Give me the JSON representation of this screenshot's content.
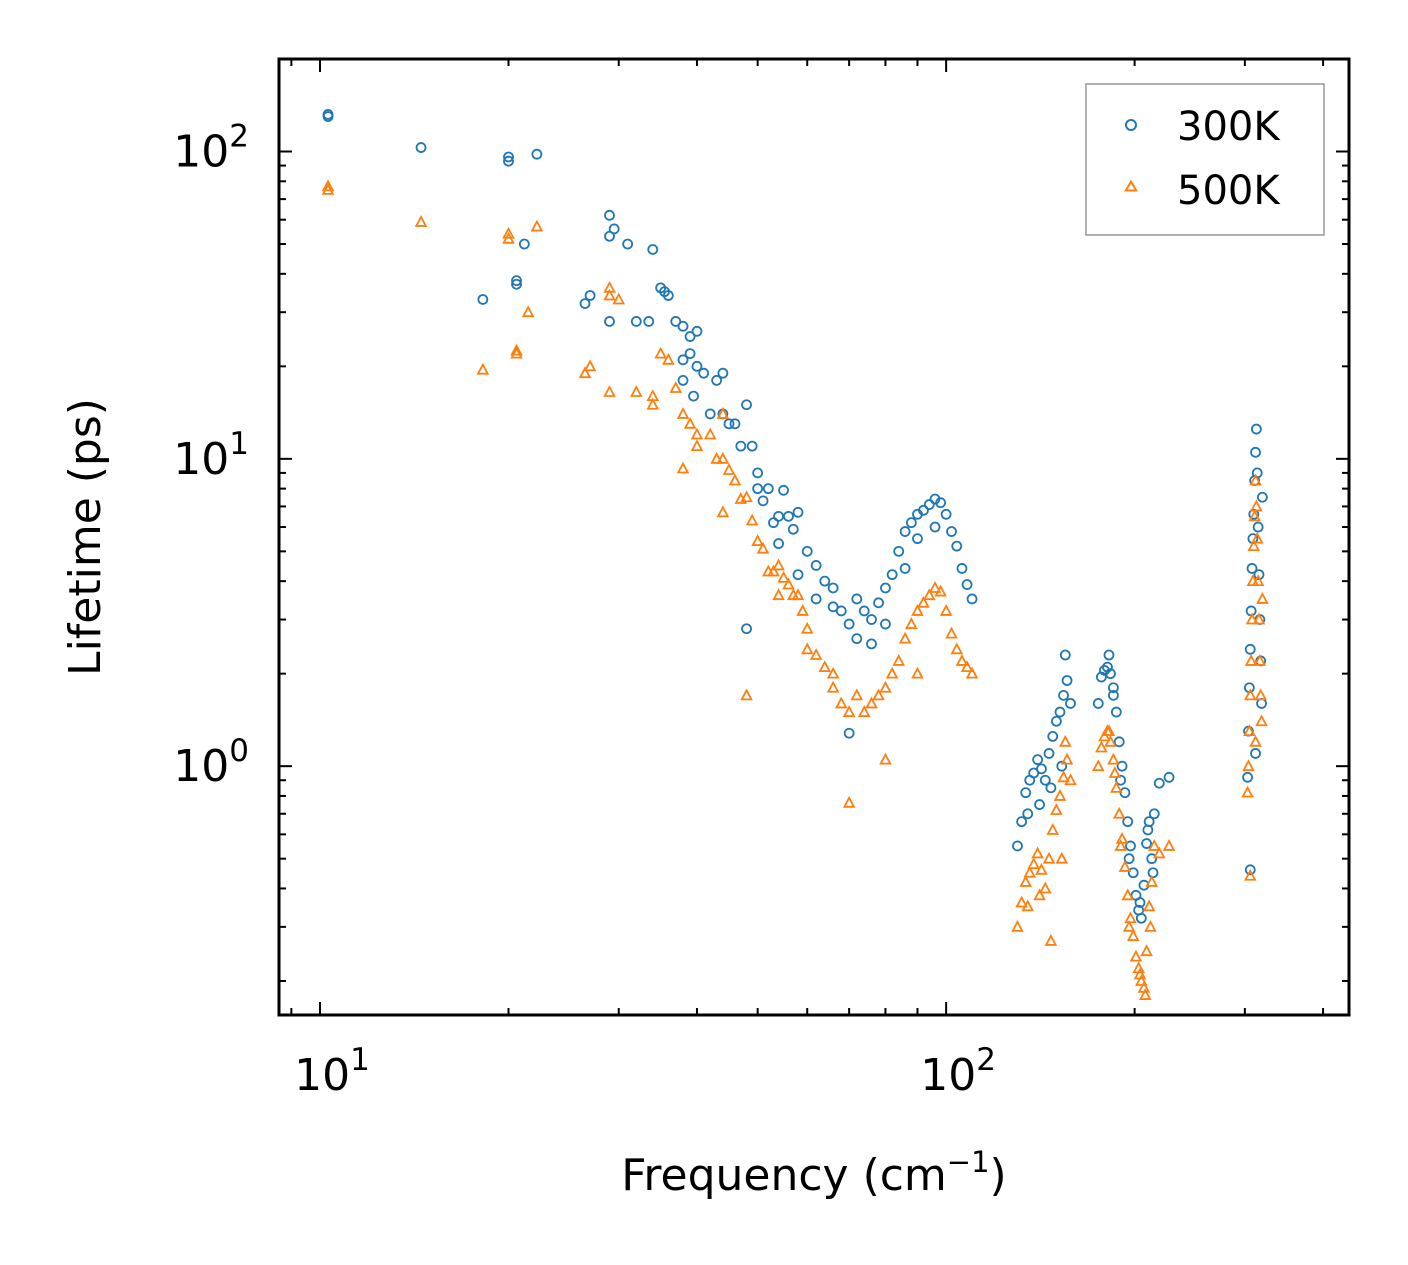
{
  "chart_data": {
    "type": "scatter",
    "title": "",
    "xlabel": "Frequency (cm",
    "xlabel_sup": "−1",
    "xlabel_end": ")",
    "ylabel": "Lifetime (ps)",
    "xscale": "log",
    "yscale": "log",
    "xlim": [
      8.6,
      440
    ],
    "ylim": [
      0.155,
      200
    ],
    "x_ticks": [
      {
        "value": 10,
        "base": "10",
        "exp": "1"
      },
      {
        "value": 100,
        "base": "10",
        "exp": "2"
      }
    ],
    "y_ticks": [
      {
        "value": 1,
        "base": "10",
        "exp": "0"
      },
      {
        "value": 10,
        "base": "10",
        "exp": "1"
      },
      {
        "value": 100,
        "base": "10",
        "exp": "2"
      }
    ],
    "legend": {
      "position": "top-right"
    },
    "series": [
      {
        "name": "300K",
        "marker": "circle",
        "color": "#1f77b4",
        "points": [
          [
            10.3,
            132
          ],
          [
            10.3,
            130
          ],
          [
            14.5,
            103
          ],
          [
            20,
            93
          ],
          [
            20,
            96
          ],
          [
            22.2,
            98
          ],
          [
            21.2,
            50
          ],
          [
            18.2,
            33
          ],
          [
            20.6,
            37
          ],
          [
            20.6,
            38
          ],
          [
            26.5,
            32
          ],
          [
            27,
            34
          ],
          [
            29,
            62
          ],
          [
            29,
            53
          ],
          [
            29.5,
            56
          ],
          [
            29,
            28
          ],
          [
            31,
            50
          ],
          [
            32,
            28
          ],
          [
            33.5,
            28
          ],
          [
            34,
            48
          ],
          [
            35,
            36
          ],
          [
            35.5,
            35
          ],
          [
            36,
            34
          ],
          [
            37,
            28
          ],
          [
            38,
            27
          ],
          [
            38,
            21
          ],
          [
            38,
            18
          ],
          [
            39,
            25
          ],
          [
            39,
            22
          ],
          [
            40,
            26
          ],
          [
            40,
            20
          ],
          [
            39.5,
            16
          ],
          [
            41,
            19
          ],
          [
            42,
            14
          ],
          [
            43,
            18
          ],
          [
            44,
            19
          ],
          [
            44,
            14
          ],
          [
            45,
            13
          ],
          [
            46,
            13
          ],
          [
            47,
            11
          ],
          [
            48,
            15
          ],
          [
            49,
            11
          ],
          [
            50,
            9
          ],
          [
            50,
            8
          ],
          [
            51,
            7.3
          ],
          [
            52,
            8
          ],
          [
            53,
            6.2
          ],
          [
            54,
            6.5
          ],
          [
            55,
            7.9
          ],
          [
            56,
            6.5
          ],
          [
            57,
            5.9
          ],
          [
            58,
            6.7
          ],
          [
            60,
            5
          ],
          [
            62,
            4.5
          ],
          [
            64,
            4
          ],
          [
            66,
            3.3
          ],
          [
            68,
            3.2
          ],
          [
            70,
            2.9
          ],
          [
            70,
            1.28
          ],
          [
            72,
            3.5
          ],
          [
            74,
            3.2
          ],
          [
            76,
            3
          ],
          [
            78,
            3.4
          ],
          [
            80,
            3.8
          ],
          [
            82,
            4.2
          ],
          [
            84,
            5
          ],
          [
            86,
            5.8
          ],
          [
            88,
            6.2
          ],
          [
            90,
            6.6
          ],
          [
            92,
            6.8
          ],
          [
            94,
            7.1
          ],
          [
            96,
            7.4
          ],
          [
            98,
            7.2
          ],
          [
            100,
            6.6
          ],
          [
            102,
            5.8
          ],
          [
            104,
            5.2
          ],
          [
            106,
            4.4
          ],
          [
            108,
            3.9
          ],
          [
            110,
            3.5
          ],
          [
            48,
            2.8
          ],
          [
            76,
            2.5
          ],
          [
            62,
            3.5
          ],
          [
            58,
            4.2
          ],
          [
            54,
            5.3
          ],
          [
            66,
            3.8
          ],
          [
            72,
            2.6
          ],
          [
            80,
            2.9
          ],
          [
            86,
            4.4
          ],
          [
            90,
            5.5
          ],
          [
            96,
            6
          ],
          [
            130,
            0.55
          ],
          [
            132,
            0.66
          ],
          [
            134,
            0.82
          ],
          [
            136,
            0.9
          ],
          [
            138,
            0.95
          ],
          [
            140,
            1.05
          ],
          [
            142,
            0.98
          ],
          [
            144,
            0.9
          ],
          [
            146,
            1.1
          ],
          [
            148,
            1.25
          ],
          [
            150,
            1.4
          ],
          [
            152,
            1.5
          ],
          [
            154,
            1.7
          ],
          [
            155,
            2.3
          ],
          [
            156,
            1.9
          ],
          [
            158,
            1.6
          ],
          [
            135,
            0.7
          ],
          [
            141,
            0.75
          ],
          [
            147,
            0.85
          ],
          [
            153,
            1.0
          ],
          [
            175,
            1.6
          ],
          [
            177,
            1.95
          ],
          [
            179,
            2.05
          ],
          [
            181,
            2.1
          ],
          [
            183,
            2.0
          ],
          [
            185,
            1.8
          ],
          [
            187,
            1.5
          ],
          [
            189,
            1.2
          ],
          [
            191,
            1.0
          ],
          [
            193,
            0.82
          ],
          [
            195,
            0.66
          ],
          [
            197,
            0.55
          ],
          [
            199,
            0.45
          ],
          [
            201,
            0.38
          ],
          [
            203,
            0.34
          ],
          [
            205,
            0.32
          ],
          [
            207,
            0.41
          ],
          [
            209,
            0.56
          ],
          [
            211,
            0.66
          ],
          [
            213,
            0.5
          ],
          [
            215,
            0.7
          ],
          [
            219,
            0.88
          ],
          [
            227,
            0.92
          ],
          [
            182,
            2.3
          ],
          [
            185,
            1.7
          ],
          [
            190,
            0.9
          ],
          [
            196,
            0.5
          ],
          [
            204,
            0.36
          ],
          [
            210,
            0.62
          ],
          [
            214,
            0.45
          ],
          [
            303,
            0.92
          ],
          [
            304,
            1.3
          ],
          [
            305,
            1.8
          ],
          [
            306,
            2.4
          ],
          [
            307,
            3.2
          ],
          [
            308,
            4.4
          ],
          [
            309,
            5.5
          ],
          [
            310,
            6.6
          ],
          [
            311,
            8.5
          ],
          [
            312,
            10.5
          ],
          [
            313,
            12.5
          ],
          [
            314,
            9
          ],
          [
            315,
            6
          ],
          [
            316,
            4.2
          ],
          [
            317,
            3
          ],
          [
            318,
            2.2
          ],
          [
            319,
            1.6
          ],
          [
            320,
            7.5
          ],
          [
            306,
            0.46
          ],
          [
            312,
            1.1
          ]
        ]
      },
      {
        "name": "500K",
        "marker": "triangle",
        "color": "#ff7f0e",
        "points": [
          [
            10.3,
            77
          ],
          [
            10.3,
            75
          ],
          [
            14.5,
            59
          ],
          [
            20,
            54
          ],
          [
            20,
            52
          ],
          [
            22.2,
            57
          ],
          [
            21.5,
            30
          ],
          [
            18.2,
            19.5
          ],
          [
            20.6,
            22
          ],
          [
            20.6,
            22.5
          ],
          [
            26.5,
            19
          ],
          [
            27,
            20
          ],
          [
            29,
            36
          ],
          [
            29,
            34
          ],
          [
            30,
            33
          ],
          [
            29,
            16.5
          ],
          [
            32,
            16.5
          ],
          [
            34,
            16
          ],
          [
            34,
            15
          ],
          [
            35,
            22
          ],
          [
            36,
            21
          ],
          [
            37,
            17
          ],
          [
            38,
            14
          ],
          [
            39,
            13
          ],
          [
            40,
            12
          ],
          [
            40,
            11
          ],
          [
            42,
            12
          ],
          [
            43,
            10
          ],
          [
            44,
            10
          ],
          [
            45,
            9.2
          ],
          [
            46,
            8.5
          ],
          [
            44,
            6.7
          ],
          [
            47,
            7.4
          ],
          [
            48,
            7.5
          ],
          [
            49,
            6.3
          ],
          [
            50,
            5.4
          ],
          [
            51,
            5.1
          ],
          [
            52,
            4.3
          ],
          [
            53,
            4.3
          ],
          [
            54,
            4.5
          ],
          [
            55,
            4.1
          ],
          [
            56,
            3.9
          ],
          [
            57,
            3.6
          ],
          [
            58,
            3.6
          ],
          [
            59,
            3.2
          ],
          [
            60,
            2.8
          ],
          [
            62,
            2.3
          ],
          [
            64,
            2.1
          ],
          [
            66,
            1.8
          ],
          [
            68,
            1.6
          ],
          [
            70,
            1.5
          ],
          [
            72,
            1.7
          ],
          [
            74,
            1.5
          ],
          [
            76,
            1.6
          ],
          [
            78,
            1.7
          ],
          [
            80,
            1.8
          ],
          [
            82,
            2.0
          ],
          [
            84,
            2.2
          ],
          [
            86,
            2.6
          ],
          [
            88,
            2.9
          ],
          [
            90,
            3.2
          ],
          [
            92,
            3.4
          ],
          [
            94,
            3.6
          ],
          [
            96,
            3.8
          ],
          [
            98,
            3.7
          ],
          [
            100,
            3.2
          ],
          [
            102,
            2.7
          ],
          [
            104,
            2.4
          ],
          [
            106,
            2.2
          ],
          [
            108,
            2.1
          ],
          [
            110,
            2.0
          ],
          [
            48,
            1.7
          ],
          [
            70,
            0.76
          ],
          [
            80,
            1.05
          ],
          [
            38,
            9.3
          ],
          [
            44,
            14
          ],
          [
            54,
            3.6
          ],
          [
            60,
            2.4
          ],
          [
            66,
            2.0
          ],
          [
            90,
            2.0
          ],
          [
            130,
            0.3
          ],
          [
            132,
            0.36
          ],
          [
            134,
            0.42
          ],
          [
            136,
            0.45
          ],
          [
            138,
            0.48
          ],
          [
            140,
            0.52
          ],
          [
            142,
            0.46
          ],
          [
            144,
            0.4
          ],
          [
            146,
            0.5
          ],
          [
            148,
            0.62
          ],
          [
            150,
            0.72
          ],
          [
            152,
            0.8
          ],
          [
            154,
            0.92
          ],
          [
            155,
            1.2
          ],
          [
            156,
            1.05
          ],
          [
            158,
            0.9
          ],
          [
            135,
            0.35
          ],
          [
            141,
            0.38
          ],
          [
            147,
            0.27
          ],
          [
            153,
            0.5
          ],
          [
            175,
            1.0
          ],
          [
            177,
            1.15
          ],
          [
            179,
            1.25
          ],
          [
            181,
            1.3
          ],
          [
            183,
            1.2
          ],
          [
            185,
            1.05
          ],
          [
            187,
            0.85
          ],
          [
            189,
            0.7
          ],
          [
            191,
            0.58
          ],
          [
            193,
            0.47
          ],
          [
            195,
            0.38
          ],
          [
            197,
            0.32
          ],
          [
            199,
            0.28
          ],
          [
            201,
            0.24
          ],
          [
            203,
            0.22
          ],
          [
            205,
            0.2
          ],
          [
            207,
            0.19
          ],
          [
            209,
            0.25
          ],
          [
            211,
            0.35
          ],
          [
            213,
            0.42
          ],
          [
            215,
            0.55
          ],
          [
            219,
            0.52
          ],
          [
            227,
            0.55
          ],
          [
            182,
            1.3
          ],
          [
            186,
            0.95
          ],
          [
            190,
            0.55
          ],
          [
            196,
            0.3
          ],
          [
            204,
            0.21
          ],
          [
            208,
            0.18
          ],
          [
            212,
            0.3
          ],
          [
            303,
            0.82
          ],
          [
            304,
            1.0
          ],
          [
            305,
            1.3
          ],
          [
            306,
            1.7
          ],
          [
            307,
            2.2
          ],
          [
            308,
            3.0
          ],
          [
            309,
            4.0
          ],
          [
            310,
            5.2
          ],
          [
            311,
            6.5
          ],
          [
            312,
            8.5
          ],
          [
            313,
            7.0
          ],
          [
            314,
            5.5
          ],
          [
            315,
            4.0
          ],
          [
            316,
            3.0
          ],
          [
            317,
            2.2
          ],
          [
            318,
            1.7
          ],
          [
            319,
            1.4
          ],
          [
            320,
            3.5
          ],
          [
            306,
            0.44
          ],
          [
            312,
            1.2
          ]
        ]
      }
    ]
  }
}
